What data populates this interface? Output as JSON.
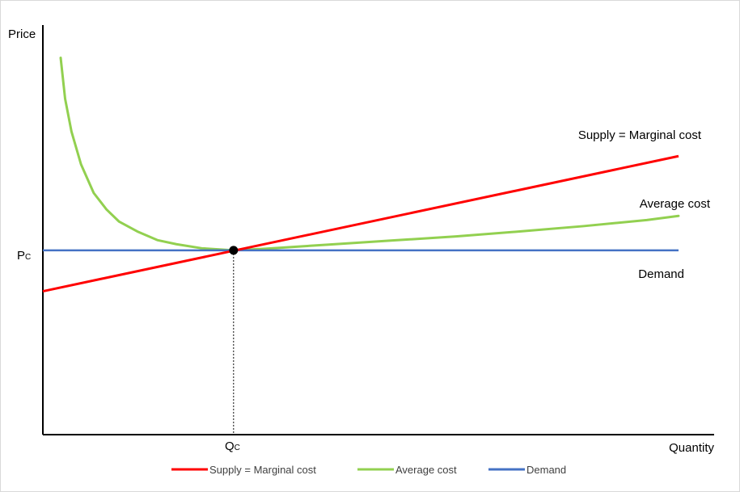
{
  "chart_data": {
    "type": "line",
    "xlabel": "Quantity",
    "ylabel": "Price",
    "xlim": [
      0,
      100
    ],
    "ylim": [
      0,
      100
    ],
    "grid": false,
    "legend_position": "bottom",
    "tick_labels": {
      "x": {
        "main": "Q",
        "sub": "C",
        "value": 30
      },
      "y": {
        "main": "P",
        "sub": "C",
        "value": 45
      }
    },
    "equilibrium": {
      "x": 30,
      "y": 45
    },
    "series": [
      {
        "name": "Supply = Marginal cost",
        "label": "Supply = Marginal cost",
        "color": "#ff0000",
        "points": [
          [
            0,
            35
          ],
          [
            100,
            68
          ]
        ]
      },
      {
        "name": "Average cost",
        "label": "Average cost",
        "color": "#92d050",
        "points": [
          [
            2.8,
            92
          ],
          [
            3.5,
            82
          ],
          [
            4.5,
            74
          ],
          [
            6,
            66
          ],
          [
            8,
            59
          ],
          [
            10,
            55
          ],
          [
            12,
            52
          ],
          [
            15,
            49.5
          ],
          [
            18,
            47.5
          ],
          [
            21,
            46.5
          ],
          [
            25,
            45.5
          ],
          [
            30,
            45
          ],
          [
            35,
            45.4
          ],
          [
            45,
            46.4
          ],
          [
            55,
            47.4
          ],
          [
            65,
            48.4
          ],
          [
            75,
            49.6
          ],
          [
            85,
            50.9
          ],
          [
            95,
            52.4
          ],
          [
            100,
            53.4
          ]
        ]
      },
      {
        "name": "Demand",
        "label": "Demand",
        "color": "#4472c4",
        "points": [
          [
            0,
            45
          ],
          [
            100,
            45
          ]
        ]
      }
    ]
  }
}
